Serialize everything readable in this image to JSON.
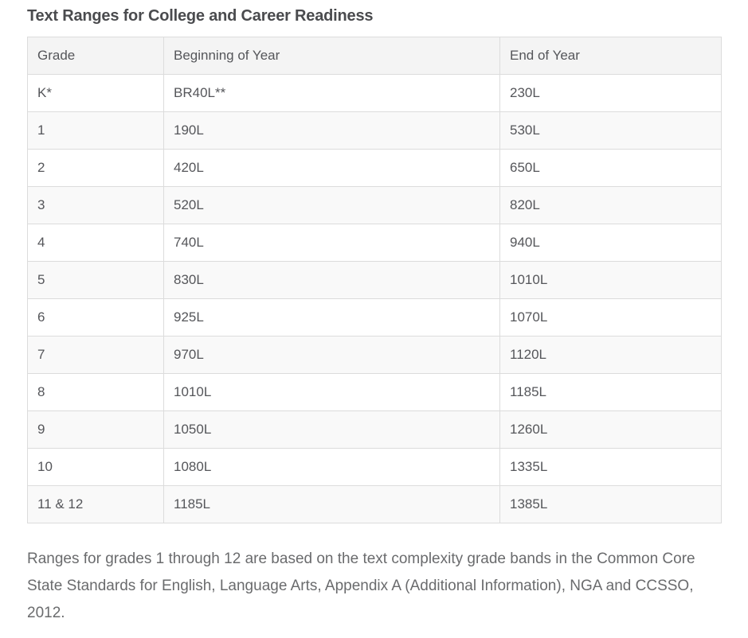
{
  "page": {
    "title": "Text Ranges for College and Career Readiness",
    "footnote": "Ranges for grades 1 through 12 are based on the text complexity grade bands in the Common Core State Standards for English, Language Arts, Appendix A (Additional Information), NGA and CCSSO, 2012."
  },
  "table": {
    "columns": [
      {
        "key": "grade",
        "label": "Grade"
      },
      {
        "key": "beginning",
        "label": "Beginning of Year"
      },
      {
        "key": "end",
        "label": "End of Year"
      }
    ],
    "rows": [
      {
        "grade": "K*",
        "beginning": "BR40L**",
        "end": "230L"
      },
      {
        "grade": "1",
        "beginning": "190L",
        "end": "530L"
      },
      {
        "grade": "2",
        "beginning": "420L",
        "end": "650L"
      },
      {
        "grade": "3",
        "beginning": "520L",
        "end": "820L"
      },
      {
        "grade": "4",
        "beginning": "740L",
        "end": "940L"
      },
      {
        "grade": "5",
        "beginning": "830L",
        "end": "1010L"
      },
      {
        "grade": "6",
        "beginning": "925L",
        "end": "1070L"
      },
      {
        "grade": "7",
        "beginning": "970L",
        "end": "1120L"
      },
      {
        "grade": "8",
        "beginning": "1010L",
        "end": "1185L"
      },
      {
        "grade": "9",
        "beginning": "1050L",
        "end": "1260L"
      },
      {
        "grade": "10",
        "beginning": "1080L",
        "end": "1335L"
      },
      {
        "grade": "11 & 12",
        "beginning": "1185L",
        "end": "1385L"
      }
    ]
  },
  "colors": {
    "header_bg": "#f4f4f4",
    "stripe_bg": "#f9f9f9",
    "border": "#dcdcdc",
    "title_text": "#4a4b4e",
    "cell_text": "#55565a",
    "footnote_text": "#6a6b6d",
    "page_bg": "#ffffff"
  }
}
